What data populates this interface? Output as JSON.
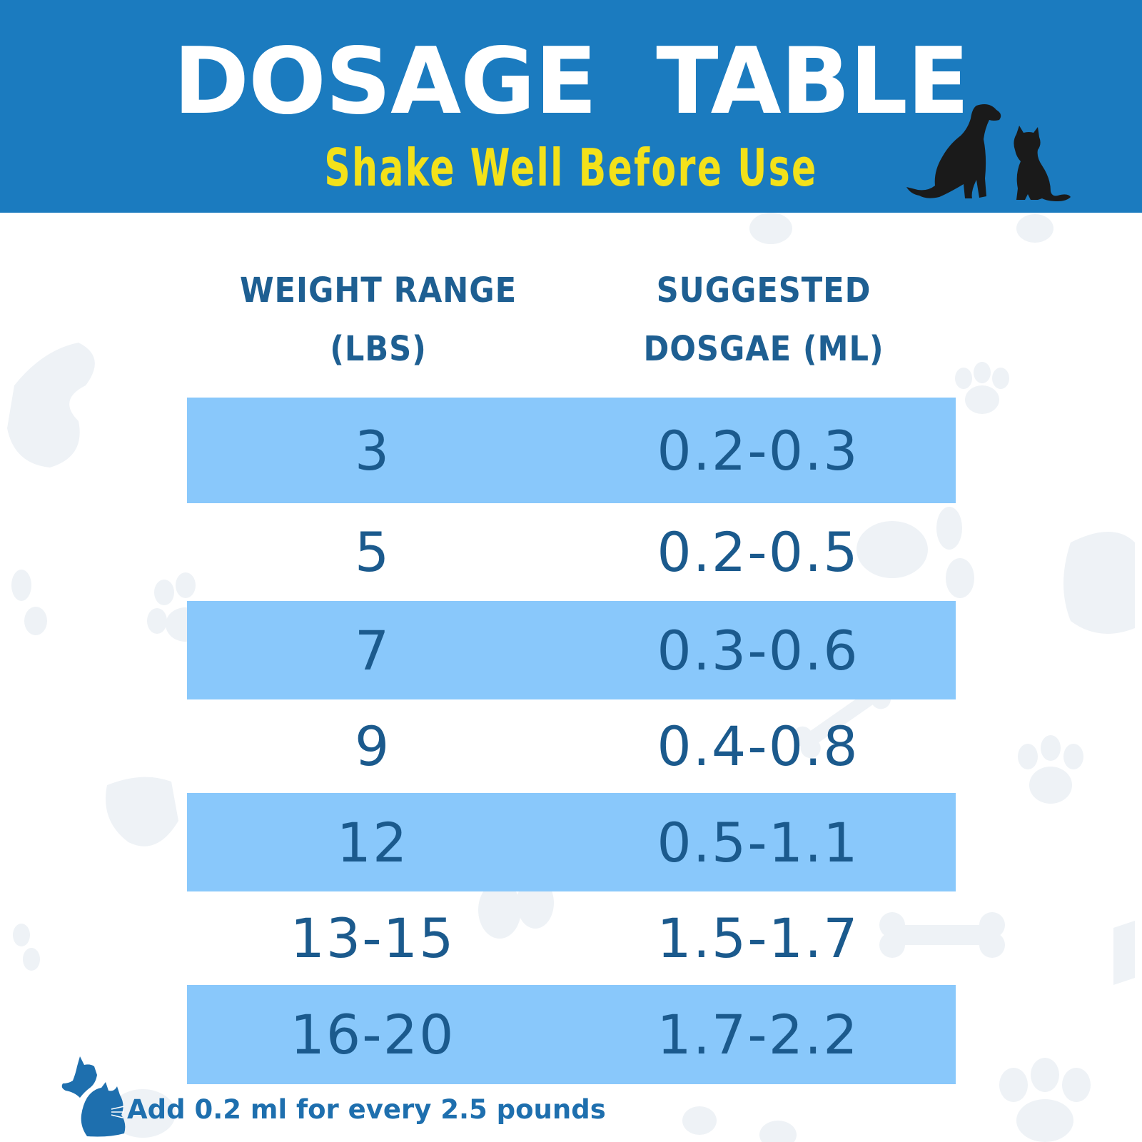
{
  "header": {
    "title": "DOSAGE TABLE",
    "subtitle": "Shake Well Before Use",
    "illustration": "dog-and-cat-silhouette"
  },
  "table": {
    "columns": [
      {
        "line1": "WEIGHT RANGE",
        "line2": "(LBS)"
      },
      {
        "line1": "SUGGESTED",
        "line2": "DOSGAE (ML)"
      }
    ],
    "rows": [
      {
        "weight": "3",
        "dosage": "0.2-0.3"
      },
      {
        "weight": "5",
        "dosage": "0.2-0.5"
      },
      {
        "weight": "7",
        "dosage": "0.3-0.6"
      },
      {
        "weight": "9",
        "dosage": "0.4-0.8"
      },
      {
        "weight": "12",
        "dosage": "0.5-1.1"
      },
      {
        "weight": "13-15",
        "dosage": "1.5-1.7"
      },
      {
        "weight": "16-20",
        "dosage": "1.7-2.2"
      }
    ]
  },
  "footer": {
    "note": "Add 0.2 ml for every 2.5 pounds",
    "icon": "dog-cat-head-icon"
  },
  "colors": {
    "header_bg": "#1b7bbf",
    "title": "#ffffff",
    "subtitle": "#f3e11a",
    "row_shade": "#89c8fb",
    "text": "#1b5a8d"
  }
}
